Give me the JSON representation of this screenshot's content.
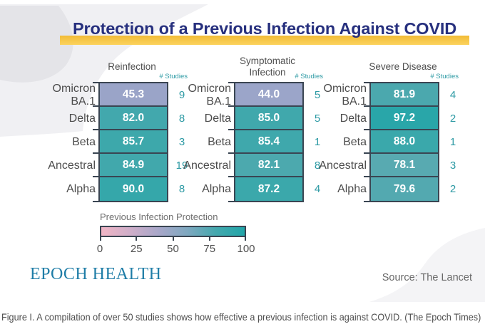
{
  "header": {
    "title": "Protection of a Previous Infection Against COVID"
  },
  "chart_data": {
    "type": "heatmap",
    "title": "Protection of a Previous Infection Against COVID",
    "row_labels": [
      "Omicron BA.1",
      "Delta",
      "Beta",
      "Ancestral",
      "Alpha"
    ],
    "value_range": [
      0,
      100
    ],
    "studies_header": "# Studies",
    "panels": [
      {
        "title": "Reinfection",
        "values": [
          45.3,
          82.0,
          85.7,
          84.9,
          90.0
        ],
        "studies": [
          9,
          8,
          3,
          19,
          8
        ],
        "cell_colors": [
          "#9aa4c8",
          "#42a8ad",
          "#3da8ab",
          "#41a8ac",
          "#35a7aa"
        ]
      },
      {
        "title": "Symptomatic Infection",
        "values": [
          44.0,
          85.0,
          85.4,
          82.1,
          87.2
        ],
        "studies": [
          5,
          5,
          1,
          8,
          4
        ],
        "cell_colors": [
          "#9ba5c9",
          "#40a8ac",
          "#3fa8ac",
          "#4ca9ae",
          "#3ba8ab"
        ]
      },
      {
        "title": "Severe Disease",
        "values": [
          81.9,
          97.2,
          88.0,
          78.1,
          79.6
        ],
        "studies": [
          4,
          2,
          1,
          3,
          2
        ],
        "cell_colors": [
          "#4ba8ae",
          "#29a6a9",
          "#3aa8ab",
          "#58aab1",
          "#53a9b0"
        ]
      }
    ],
    "colorbar": {
      "label": "Previous Infection Protection",
      "ticks": [
        "0",
        "25",
        "50",
        "75",
        "100"
      ],
      "gradient": [
        "#f0b5c5",
        "#cfaec9",
        "#a8a7c9",
        "#7fa8c0",
        "#44a8ae",
        "#21a6a9"
      ]
    },
    "legend_position": "bottom-left",
    "grid": false
  },
  "footer": {
    "brand": "EPOCH HEALTH",
    "source": "Source: The Lancet"
  },
  "caption": "Figure I. A compilation of over 50 studies shows how effective a previous infection is against COVID. (The Epoch Times)",
  "colors": {
    "title_text": "#27307e",
    "title_highlight": "#f7c544",
    "studies_text": "#2d9aa4",
    "cell_border": "#3a4552",
    "row_label": "#4c4c4c",
    "value_text": "#ffffff",
    "omicron_cell": "#9aa4c8",
    "teal_cell": "#3aa8ab",
    "brand_text": "#1f7da7",
    "source_text": "#686868",
    "caption_text": "#4e4e4e"
  }
}
